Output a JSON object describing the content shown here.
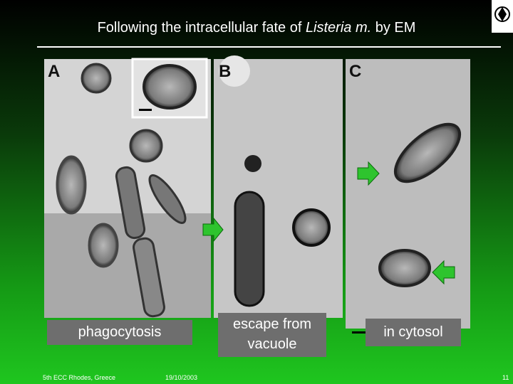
{
  "header": {
    "title": {
      "before": "Following the intracellular fate of ",
      "italic": "Listeria m.",
      "after": " by EM"
    }
  },
  "panels": [
    {
      "label": "A"
    },
    {
      "label": "B"
    },
    {
      "label": "C"
    }
  ],
  "captions": [
    {
      "lines": [
        "phagocytosis"
      ]
    },
    {
      "lines": [
        "escape from",
        "vacuole"
      ]
    },
    {
      "lines": [
        "in cytosol"
      ]
    }
  ],
  "footer": {
    "event": "5th ECC Rhodes, Greece",
    "date": "19/10/2003",
    "page": "11"
  }
}
